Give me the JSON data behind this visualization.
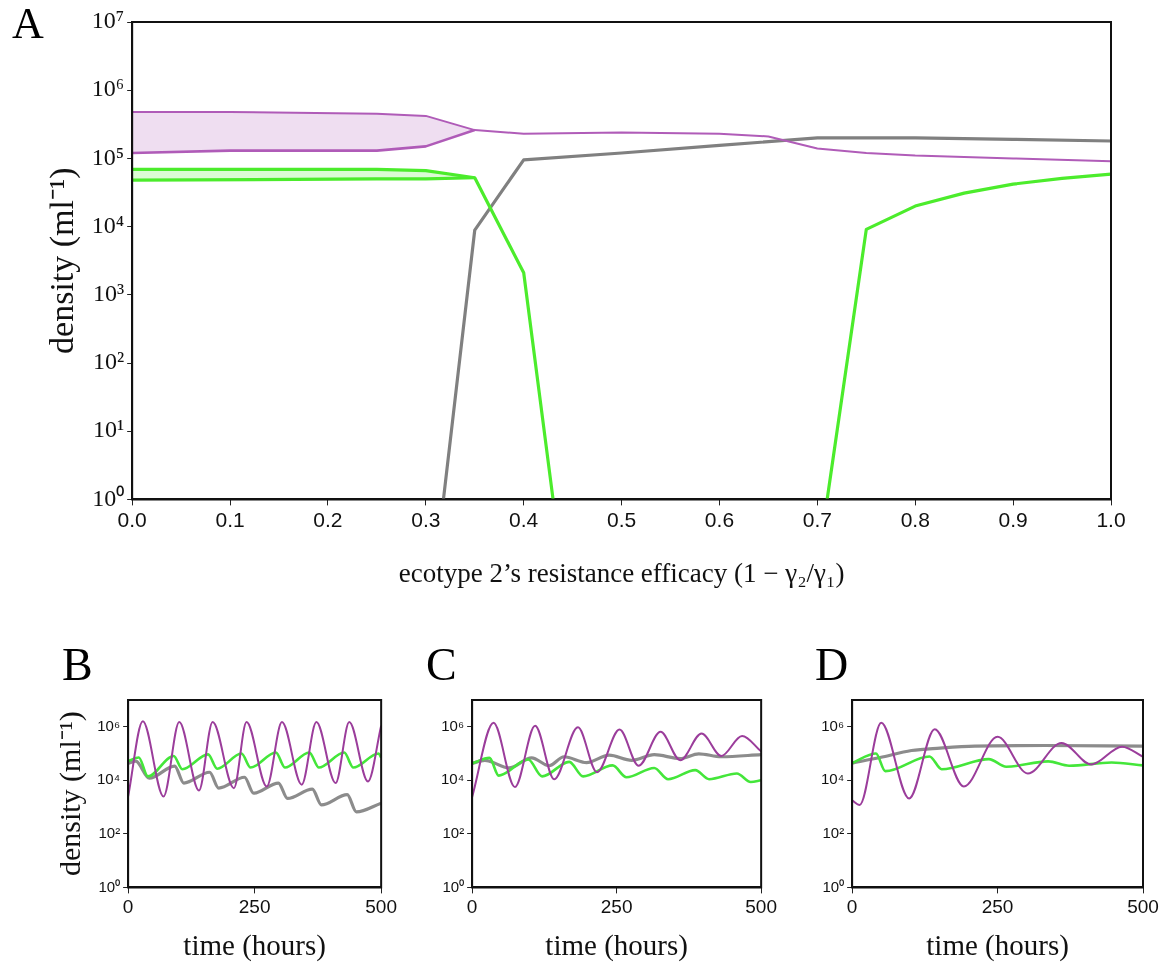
{
  "chart_data": [
    {
      "type": "line",
      "title": "A",
      "xlabel": "ecotype 2’s resistance efficacy (1 − γ₂/γ₁)",
      "ylabel": "density (ml⁻¹)",
      "log": true,
      "xlim": [
        0,
        1
      ],
      "ylim": [
        1,
        10000000
      ],
      "xticks": [
        {
          "value": 0,
          "label": "0.0"
        },
        0.1,
        0.2,
        0.3,
        0.4,
        0.5,
        0.6,
        0.7,
        0.8,
        0.9,
        {
          "value": 1,
          "label": "1.0"
        }
      ],
      "yticks": [
        {
          "value": 1,
          "label": "10⁰"
        },
        {
          "value": 10,
          "label": "10¹"
        },
        {
          "value": 100,
          "label": "10²"
        },
        {
          "value": 1000,
          "label": "10³"
        },
        {
          "value": 10000,
          "label": "10⁴"
        },
        {
          "value": 100000,
          "label": "10⁵"
        },
        {
          "value": 1000000,
          "label": "10⁶"
        },
        {
          "value": 10000000,
          "label": "10⁷"
        }
      ],
      "series": [
        {
          "color": "#b05cb8",
          "x": [
            0,
            0.1,
            0.25,
            0.3,
            0.35,
            0.4,
            0.5,
            0.6,
            0.65,
            0.7,
            0.75,
            0.8,
            0.9,
            1.0
          ],
          "values": [
            480000,
            480000,
            450000,
            420000,
            260000,
            230000,
            240000,
            230000,
            210000,
            140000,
            120000,
            110000,
            100000,
            91000
          ],
          "upper": [
            480000,
            480000,
            450000,
            420000,
            260000,
            null,
            null,
            null,
            null,
            null,
            null,
            null,
            null,
            null
          ],
          "lower": [
            120000,
            130000,
            130000,
            150000,
            260000,
            null,
            null,
            null,
            null,
            null,
            null,
            null,
            null,
            null
          ]
        },
        {
          "color": "#b05cb8",
          "x": [
            0,
            0.1,
            0.25,
            0.3,
            0.35
          ],
          "values": [
            120000,
            130000,
            130000,
            150000,
            260000
          ]
        },
        {
          "color": "#4cec2c",
          "x": [
            0,
            0.25,
            0.3,
            0.35,
            0.4,
            0.43,
            0.6,
            0.71,
            0.75,
            0.8,
            0.85,
            0.9,
            0.95,
            1.0
          ],
          "values": [
            69000,
            69000,
            66000,
            52000,
            2100,
            1,
            null,
            1,
            9100,
            20000,
            31000,
            42000,
            51000,
            59000
          ],
          "upper": [
            69000,
            69000,
            66000,
            52000,
            null,
            null,
            null,
            null,
            null,
            null,
            null,
            null,
            null,
            null
          ],
          "lower": [
            48000,
            50000,
            50000,
            52000,
            null,
            null,
            null,
            null,
            null,
            null,
            null,
            null,
            null,
            null
          ]
        },
        {
          "color": "#4cec2c",
          "x": [
            0,
            0.25,
            0.3,
            0.35
          ],
          "values": [
            48000,
            50000,
            50000,
            52000
          ]
        },
        {
          "color": "#808080",
          "x": [
            0.318,
            0.35,
            0.4,
            0.5,
            0.6,
            0.7,
            0.75,
            0.8,
            0.9,
            1.0
          ],
          "values": [
            1,
            8900,
            95000,
            120000,
            155000,
            200000,
            200000,
            200000,
            190000,
            180000
          ]
        }
      ]
    },
    {
      "type": "line",
      "title": "B",
      "xlabel": "time (hours)",
      "ylabel": "density (ml⁻¹)",
      "log": true,
      "xlim": [
        0,
        500
      ],
      "ylim": [
        1,
        10000000
      ],
      "xticks": [
        0,
        250,
        500
      ],
      "yticks": [
        {
          "value": 1,
          "label": "10⁰"
        },
        {
          "value": 100,
          "label": "10²"
        },
        {
          "value": 10000,
          "label": "10⁴"
        },
        {
          "value": 1000000,
          "label": "10⁶"
        }
      ],
      "series": [
        {
          "color": "#9b3d9b",
          "x": [
            0,
            29,
            70,
            101,
            140,
            167,
            209,
            234,
            274,
            304,
            343,
            372,
            410,
            437,
            474,
            500
          ],
          "values": [
            2500,
            1600000,
            2500,
            1500000,
            4200,
            1500000,
            5100,
            1500000,
            5900,
            1500000,
            6900,
            1500000,
            7900,
            1500000,
            9100,
            1100000
          ]
        },
        {
          "color": "#44e63a",
          "x": [
            0,
            21,
            39,
            90,
            107,
            158,
            176,
            224,
            242,
            292,
            310,
            358,
            377,
            427,
            445,
            495,
            500
          ],
          "values": [
            52000,
            71000,
            14000,
            81000,
            26000,
            93000,
            27000,
            100000,
            30000,
            110000,
            30000,
            110000,
            30000,
            110000,
            30000,
            100000,
            71000
          ]
        },
        {
          "color": "#8c8c8c",
          "x": [
            0,
            15,
            42,
            92,
            110,
            161,
            179,
            230,
            248,
            297,
            315,
            364,
            382,
            433,
            451,
            500
          ],
          "values": [
            43000,
            52000,
            12000,
            34000,
            7900,
            20000,
            5100,
            13000,
            3300,
            7900,
            2100,
            4700,
            1200,
            2900,
            660,
            1400
          ]
        }
      ]
    },
    {
      "type": "line",
      "title": "C",
      "xlabel": "time (hours)",
      "log": true,
      "xlim": [
        0,
        500
      ],
      "ylim": [
        1,
        10000000
      ],
      "xticks": [
        0,
        250,
        500
      ],
      "yticks": [
        {
          "value": 1,
          "label": "10⁰"
        },
        {
          "value": 100,
          "label": "10²"
        },
        {
          "value": 10000,
          "label": "10⁴"
        },
        {
          "value": 1000000,
          "label": "10⁶"
        }
      ],
      "series": [
        {
          "color": "#9b3d9b",
          "x": [
            0,
            37,
            74,
            109,
            142,
            183,
            216,
            255,
            288,
            326,
            360,
            397,
            431,
            467,
            500
          ],
          "values": [
            2400,
            1400000,
            5600,
            1100000,
            11000,
            950000,
            20000,
            790000,
            35000,
            650000,
            56000,
            560000,
            81000,
            450000,
            120000
          ]
        },
        {
          "color": "#44e63a",
          "x": [
            0,
            30,
            46,
            97,
            121,
            168,
            192,
            243,
            267,
            315,
            339,
            386,
            410,
            458,
            482,
            500
          ],
          "values": [
            43000,
            69000,
            15000,
            60000,
            14000,
            49000,
            14000,
            36000,
            13000,
            29000,
            11000,
            24000,
            11000,
            18000,
            8700,
            10000
          ]
        },
        {
          "color": "#8c8c8c",
          "x": [
            0,
            22,
            64,
            103,
            133,
            159,
            198,
            237,
            276,
            315,
            360,
            392,
            431,
            500
          ],
          "values": [
            43000,
            56000,
            29000,
            69000,
            35000,
            76000,
            46000,
            87000,
            56000,
            91000,
            65000,
            98000,
            76000,
            91000
          ]
        }
      ]
    },
    {
      "type": "line",
      "title": "D",
      "xlabel": "time (hours)",
      "log": true,
      "xlim": [
        0,
        500
      ],
      "ylim": [
        1,
        10000000
      ],
      "xticks": [
        0,
        250,
        500
      ],
      "yticks": [
        {
          "value": 1,
          "label": "10⁰"
        },
        {
          "value": 100,
          "label": "10²"
        },
        {
          "value": 10000,
          "label": "10⁴"
        },
        {
          "value": 1000000,
          "label": "10⁶"
        }
      ],
      "series": [
        {
          "color": "#9b3d9b",
          "x": [
            0,
            13,
            50,
            98,
            142,
            192,
            250,
            302,
            360,
            411,
            464,
            500
          ],
          "values": [
            1800,
            1200,
            1400000,
            2100,
            810000,
            5900,
            420000,
            18000,
            250000,
            39000,
            180000,
            76000
          ]
        },
        {
          "color": "#44e63a",
          "x": [
            0,
            41,
            57,
            133,
            154,
            235,
            265,
            337,
            373,
            446,
            500
          ],
          "values": [
            44000,
            100000,
            22000,
            78000,
            26000,
            62000,
            32000,
            51000,
            35000,
            46000,
            36000
          ]
        },
        {
          "color": "#8c8c8c",
          "x": [
            0,
            48,
            102,
            151,
            211,
            331,
            500
          ],
          "values": [
            44000,
            71000,
            130000,
            160000,
            190000,
            200000,
            190000
          ]
        }
      ]
    }
  ]
}
